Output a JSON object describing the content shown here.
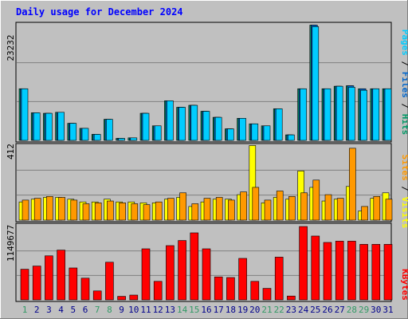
{
  "chart_data": [
    {
      "type": "bar",
      "title": "Daily usage for December 2024",
      "categories": [
        "1",
        "2",
        "3",
        "4",
        "5",
        "6",
        "7",
        "8",
        "9",
        "10",
        "11",
        "12",
        "13",
        "14",
        "15",
        "16",
        "17",
        "18",
        "19",
        "20",
        "21",
        "22",
        "23",
        "24",
        "25",
        "26",
        "27",
        "28",
        "29",
        "30",
        "31"
      ],
      "weekend_days": [
        "1",
        "7",
        "8",
        "14",
        "15",
        "21",
        "22",
        "28",
        "29"
      ],
      "ymax_label": "23232",
      "ymax": 23232,
      "series": [
        {
          "name": "Hits",
          "color": "#009966",
          "values": [
            10300,
            5500,
            5400,
            5600,
            3400,
            2400,
            1200,
            4200,
            400,
            500,
            5400,
            2900,
            7900,
            6600,
            7000,
            5800,
            4600,
            2300,
            4400,
            3300,
            2900,
            6300,
            1100,
            10300,
            23000,
            10300,
            10800,
            10900,
            10300,
            10300,
            10300
          ]
        },
        {
          "name": "Files",
          "color": "#0066cc",
          "values": [
            10300,
            5500,
            5400,
            5600,
            3400,
            2400,
            1200,
            4200,
            400,
            500,
            5400,
            2900,
            7900,
            6600,
            7000,
            5800,
            4600,
            2300,
            4400,
            3300,
            2900,
            6300,
            1100,
            10300,
            23000,
            10300,
            10800,
            10900,
            10300,
            10300,
            10300
          ]
        },
        {
          "name": "Pages",
          "color": "#00ccff",
          "values": [
            10300,
            5500,
            5400,
            5600,
            3400,
            2400,
            1200,
            4200,
            400,
            500,
            5400,
            2900,
            7900,
            6600,
            7000,
            5800,
            4600,
            2300,
            4400,
            3300,
            2900,
            6300,
            1100,
            10300,
            22700,
            10300,
            10800,
            10600,
            10000,
            10300,
            10300
          ]
        }
      ]
    },
    {
      "type": "bar",
      "ymax_label": "412",
      "ymax": 412,
      "series": [
        {
          "name": "Visits",
          "color": "#ffff00",
          "values": [
            100,
            115,
            125,
            125,
            115,
            100,
            100,
            115,
            100,
            100,
            95,
            95,
            115,
            125,
            75,
            100,
            115,
            115,
            140,
            410,
            95,
            125,
            115,
            270,
            180,
            105,
            115,
            185,
            50,
            120,
            150
          ]
        },
        {
          "name": "Sites",
          "color": "#ff9900",
          "values": [
            110,
            120,
            130,
            125,
            110,
            90,
            95,
            105,
            95,
            90,
            85,
            100,
            120,
            150,
            90,
            120,
            125,
            110,
            155,
            180,
            110,
            160,
            130,
            150,
            220,
            140,
            120,
            395,
            75,
            130,
            115
          ]
        }
      ]
    },
    {
      "type": "bar",
      "ymax_label": "1149677",
      "ymax": 1149677,
      "series": [
        {
          "name": "KBytes",
          "color": "#ff0000",
          "values": [
            480000,
            530000,
            690000,
            780000,
            500000,
            340000,
            140000,
            590000,
            55000,
            75000,
            800000,
            290000,
            850000,
            930000,
            1050000,
            800000,
            360000,
            350000,
            650000,
            290000,
            180000,
            670000,
            60000,
            1149677,
            1000000,
            900000,
            920000,
            920000,
            870000,
            870000,
            870000
          ]
        }
      ]
    }
  ],
  "colors": {
    "background": "#c0c0c0",
    "title": "#0000ff",
    "weekday_label": "#00008b",
    "weekend_label": "#339966",
    "separator": "#000000"
  }
}
